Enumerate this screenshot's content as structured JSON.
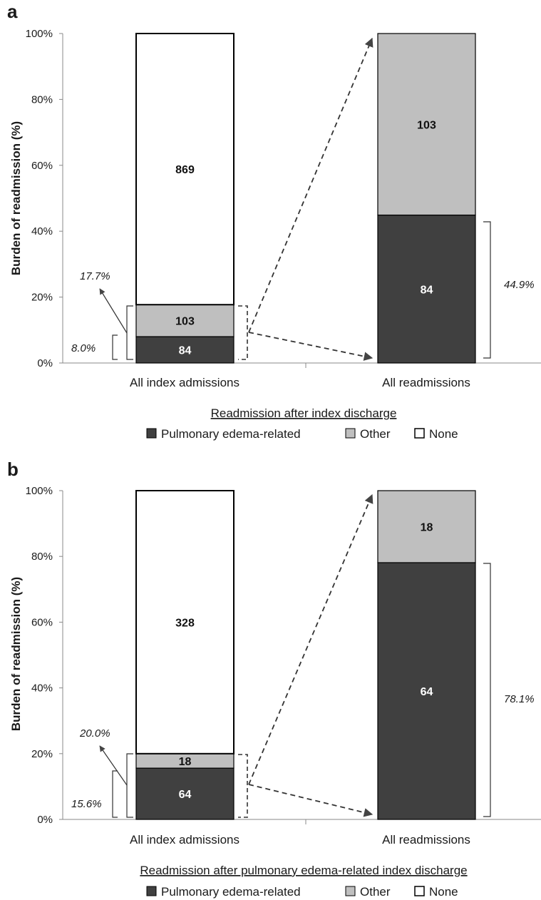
{
  "chart_data": [
    {
      "panel": "a",
      "type": "bar",
      "stacked": true,
      "categories": [
        "All index admissions",
        "All readmissions"
      ],
      "ylabel": "Burden of readmission (%)",
      "ylim": [
        0,
        100
      ],
      "yticks": [
        "0%",
        "20%",
        "40%",
        "60%",
        "80%",
        "100%"
      ],
      "series": [
        {
          "name": "Pulmonary edema-related",
          "color": "#404040",
          "percents": [
            8.0,
            44.9
          ],
          "counts": [
            "84",
            "84"
          ]
        },
        {
          "name": "Other",
          "color": "#bfbfbf",
          "percents": [
            9.7,
            55.1
          ],
          "counts": [
            "103",
            "103"
          ]
        },
        {
          "name": "None",
          "color": "#ffffff",
          "percents": [
            82.3,
            0
          ],
          "counts": [
            "869",
            ""
          ]
        }
      ],
      "annotations": {
        "index_total": "17.7%",
        "index_pe": "8.0%",
        "readm_pe": "44.9%"
      },
      "legend_title": "Readmission after index discharge",
      "legend_position": "bottom"
    },
    {
      "panel": "b",
      "type": "bar",
      "stacked": true,
      "categories": [
        "All index admissions",
        "All readmissions"
      ],
      "ylabel": "Burden of readmission (%)",
      "ylim": [
        0,
        100
      ],
      "yticks": [
        "0%",
        "20%",
        "40%",
        "60%",
        "80%",
        "100%"
      ],
      "series": [
        {
          "name": "Pulmonary edema-related",
          "color": "#404040",
          "percents": [
            15.6,
            78.1
          ],
          "counts": [
            "64",
            "64"
          ]
        },
        {
          "name": "Other",
          "color": "#bfbfbf",
          "percents": [
            4.4,
            21.9
          ],
          "counts": [
            "18",
            "18"
          ]
        },
        {
          "name": "None",
          "color": "#ffffff",
          "percents": [
            80.0,
            0
          ],
          "counts": [
            "328",
            ""
          ]
        }
      ],
      "annotations": {
        "index_total": "20.0%",
        "index_pe": "15.6%",
        "readm_pe": "78.1%"
      },
      "legend_title": "Readmission after pulmonary edema-related index discharge",
      "legend_position": "bottom"
    }
  ]
}
